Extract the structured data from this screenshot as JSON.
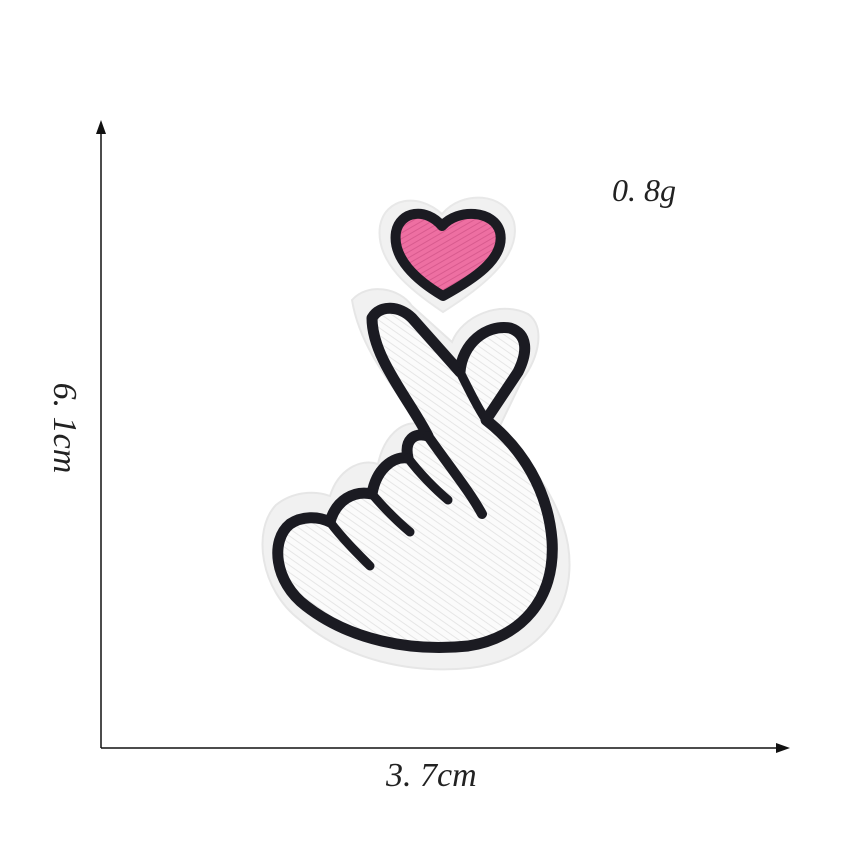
{
  "measurements": {
    "width": "3. 7cm",
    "height": "6. 1cm",
    "weight": "0. 8g"
  },
  "colors": {
    "felt": "#f3f3f3",
    "outline": "#1b1b22",
    "thread_white": "#fbfbfb",
    "heart": "#ee6fa2",
    "axis": "#111111"
  },
  "icons": [
    "finger-heart-patch",
    "heart-icon",
    "arrow-up-icon",
    "arrow-right-icon"
  ]
}
